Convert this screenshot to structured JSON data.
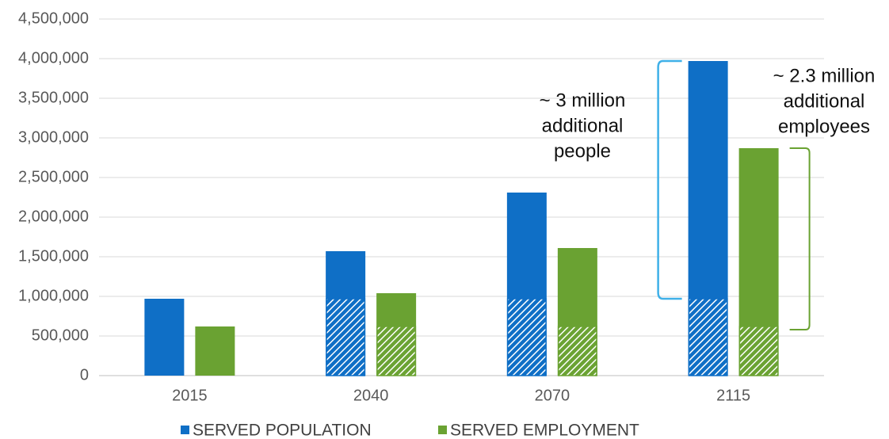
{
  "chart_data": {
    "type": "bar",
    "categories": [
      "2015",
      "2040",
      "2070",
      "2115"
    ],
    "series": [
      {
        "name": "SERVED POPULATION",
        "color": "#0f6fc6",
        "values": [
          970000,
          1570000,
          2310000,
          3970000
        ]
      },
      {
        "name": "SERVED EMPLOYMENT",
        "color": "#6aa232",
        "values": [
          620000,
          1040000,
          1610000,
          2870000
        ]
      }
    ],
    "ylim": [
      0,
      4500000
    ],
    "yticks": [
      0,
      {
        "value": 500000,
        "label": "500,000"
      },
      {
        "value": 1000000,
        "label": "1,000,000"
      },
      {
        "value": 1500000,
        "label": "1,500,000"
      },
      {
        "value": 2000000,
        "label": "2,000,000"
      },
      {
        "value": 2500000,
        "label": "2,500,000"
      },
      {
        "value": 3000000,
        "label": "3,000,000"
      },
      {
        "value": 3500000,
        "label": "3,500,000"
      },
      {
        "value": 4000000,
        "label": "4,000,000"
      },
      {
        "value": 4500000,
        "label": "4,500,000"
      }
    ],
    "grid": true,
    "annotations": [
      {
        "lines": [
          "~ 3 million",
          "additional",
          "people"
        ]
      },
      {
        "lines": [
          "~ 2.3 million",
          "additional",
          "employees"
        ]
      }
    ]
  }
}
